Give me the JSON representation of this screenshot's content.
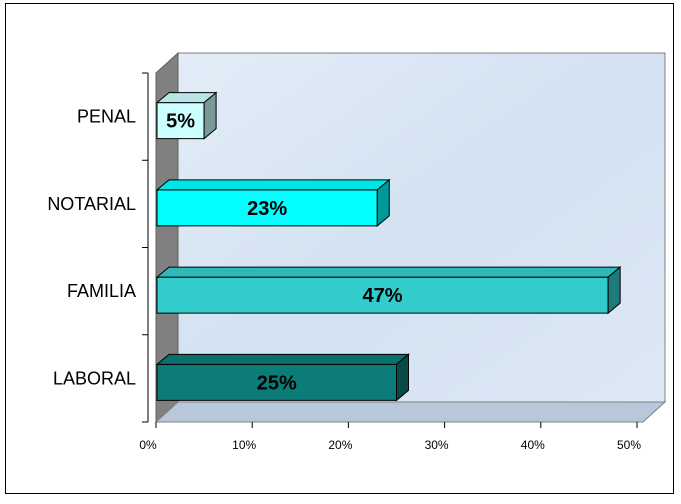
{
  "chart_data": {
    "type": "bar",
    "orientation": "horizontal",
    "three_d": true,
    "categories": [
      "LABORAL",
      "FAMILIA",
      "NOTARIAL",
      "PENAL"
    ],
    "values": [
      25,
      47,
      23,
      5
    ],
    "data_labels": [
      "25%",
      "47%",
      "23%",
      "5%"
    ],
    "bar_colors": [
      "#0b7c77",
      "#33cccc",
      "#00ffff",
      "#ccffff"
    ],
    "x_tick_labels": [
      "0%",
      "10%",
      "20%",
      "30%",
      "40%",
      "50%"
    ],
    "xlim": [
      0,
      50
    ],
    "legend": "none",
    "grid": false,
    "colors": {
      "plot_background": "#d9e6f4",
      "side_wall": "#808080",
      "floor": "#b8c8da"
    }
  }
}
